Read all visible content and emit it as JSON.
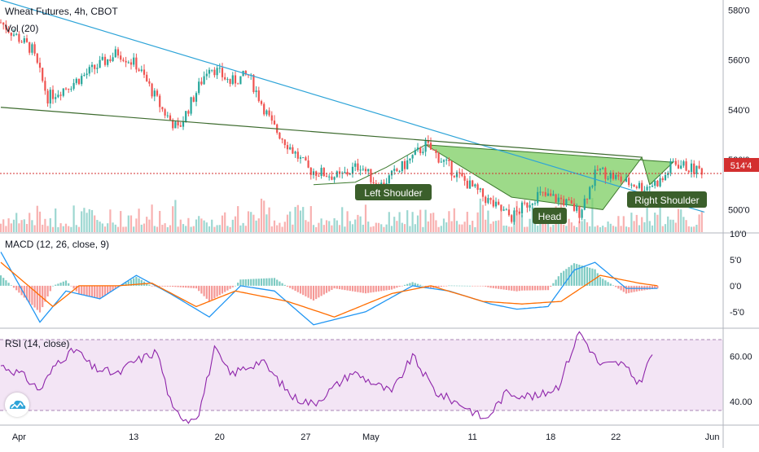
{
  "header": {
    "symbol_line": "Wheat Futures, 4h, CBOT",
    "volume_label": "Vol (20)",
    "macd_label": "MACD (12, 26, close, 9)",
    "rsi_label": "RSI (14, close)"
  },
  "colors": {
    "up": "#26a69a",
    "down": "#ef5350",
    "trendline": "#2ea4d8",
    "neckline": "#3d6b2e",
    "pattern_fill": "#7ccd62",
    "label_bg": "#3b5f2b",
    "price_line": "#d32f2f",
    "macd_line": "#2196f3",
    "signal_line": "#ff6d00",
    "rsi_line": "#8e24aa",
    "rsi_band": "#f3e5f5"
  },
  "annotations": [
    "Left Shoulder",
    "Head",
    "Right Shoulder"
  ],
  "logo": {
    "icon": "tradingview-cloud-logo"
  },
  "chart_data": [
    {
      "type": "candlestick",
      "title": "Wheat Futures, 4h, CBOT",
      "ylim": [
        491,
        584
      ],
      "y_ticks": [
        "500'0",
        "520'0",
        "540'0",
        "560'0",
        "580'0"
      ],
      "x_ticks": [
        "Apr",
        "13",
        "20",
        "27",
        "May",
        "11",
        "18",
        "22",
        "Jun"
      ],
      "last_price_label": "514'4",
      "last_price": 514.5,
      "pattern": "Head and Shoulders",
      "annotations": [
        "Left Shoulder",
        "Head",
        "Right Shoulder"
      ],
      "overlays": {
        "descending_trendline": [
          [
            0,
            584
          ],
          [
            270,
            499
          ]
        ],
        "neckline": [
          [
            0,
            541
          ],
          [
            246,
            521
          ]
        ],
        "pattern_points": [
          [
            163,
            526
          ],
          [
            196,
            505
          ],
          [
            231,
            500
          ],
          [
            246,
            521
          ],
          [
            249,
            510
          ],
          [
            258,
            519
          ]
        ]
      },
      "candles_summary": {
        "count": 270,
        "path_anchors": [
          [
            0,
            575
          ],
          [
            12,
            564
          ],
          [
            18,
            545
          ],
          [
            28,
            551
          ],
          [
            45,
            563
          ],
          [
            52,
            558
          ],
          [
            55,
            553
          ],
          [
            62,
            540
          ],
          [
            68,
            532
          ],
          [
            80,
            558
          ],
          [
            88,
            551
          ],
          [
            95,
            554
          ],
          [
            104,
            534
          ],
          [
            118,
            516
          ],
          [
            130,
            513
          ],
          [
            138,
            518
          ],
          [
            145,
            509
          ],
          [
            155,
            518
          ],
          [
            163,
            526
          ],
          [
            175,
            514
          ],
          [
            190,
            501
          ],
          [
            196,
            497
          ],
          [
            206,
            506
          ],
          [
            215,
            504
          ],
          [
            222,
            499
          ],
          [
            229,
            516
          ],
          [
            240,
            511
          ],
          [
            247,
            509
          ],
          [
            254,
            512
          ],
          [
            258,
            519
          ],
          [
            266,
            516
          ]
        ]
      }
    },
    {
      "type": "bar",
      "title": "Vol (20)",
      "series": [
        {
          "values_summary": "volume per 4h bar, red/green by candle direction"
        }
      ]
    },
    {
      "type": "line",
      "title": "MACD (12, 26, close, 9)",
      "ylim": [
        -8,
        10
      ],
      "y_ticks": [
        "-5'0",
        "0'0",
        "5'0",
        "10'0"
      ],
      "series": [
        {
          "name": "MACD",
          "anchors": [
            [
              0,
              6.5
            ],
            [
              15,
              -7
            ],
            [
              25,
              -1
            ],
            [
              38,
              -2.5
            ],
            [
              52,
              2
            ],
            [
              65,
              -1.5
            ],
            [
              80,
              -6
            ],
            [
              92,
              0
            ],
            [
              105,
              -1
            ],
            [
              120,
              -7.5
            ],
            [
              140,
              -5
            ],
            [
              158,
              0
            ],
            [
              172,
              -1
            ],
            [
              188,
              -3.5
            ],
            [
              198,
              -4.5
            ],
            [
              210,
              -4
            ],
            [
              220,
              3
            ],
            [
              228,
              4.5
            ],
            [
              240,
              -0.5
            ],
            [
              252,
              -0.5
            ]
          ]
        },
        {
          "name": "Signal",
          "anchors": [
            [
              0,
              4.5
            ],
            [
              20,
              -4
            ],
            [
              30,
              0
            ],
            [
              45,
              0
            ],
            [
              58,
              0.5
            ],
            [
              75,
              -4
            ],
            [
              90,
              -1
            ],
            [
              110,
              -3
            ],
            [
              128,
              -6
            ],
            [
              150,
              -1.5
            ],
            [
              165,
              0
            ],
            [
              185,
              -3
            ],
            [
              200,
              -3.5
            ],
            [
              215,
              -3
            ],
            [
              230,
              2
            ],
            [
              245,
              0.5
            ],
            [
              252,
              0
            ]
          ]
        }
      ]
    },
    {
      "type": "line",
      "title": "RSI (14, close)",
      "ylim": [
        30,
        72
      ],
      "y_ticks": [
        "40.00",
        "60.00"
      ],
      "band": [
        30,
        70
      ],
      "series": [
        {
          "name": "RSI",
          "anchors": [
            [
              0,
              56
            ],
            [
              8,
              52
            ],
            [
              15,
              45
            ],
            [
              22,
              58
            ],
            [
              29,
              63
            ],
            [
              35,
              55
            ],
            [
              45,
              52
            ],
            [
              50,
              57
            ],
            [
              60,
              62
            ],
            [
              66,
              36
            ],
            [
              72,
              32
            ],
            [
              76,
              35
            ],
            [
              82,
              63
            ],
            [
              88,
              52
            ],
            [
              100,
              58
            ],
            [
              112,
              42
            ],
            [
              120,
              39
            ],
            [
              135,
              53
            ],
            [
              150,
              44
            ],
            [
              158,
              60
            ],
            [
              167,
              44
            ],
            [
              178,
              38
            ],
            [
              186,
              32
            ],
            [
              194,
              44
            ],
            [
              206,
              42
            ],
            [
              214,
              47
            ],
            [
              222,
              71
            ],
            [
              230,
              56
            ],
            [
              238,
              57
            ],
            [
              245,
              48
            ],
            [
              250,
              61
            ]
          ]
        }
      ]
    }
  ]
}
